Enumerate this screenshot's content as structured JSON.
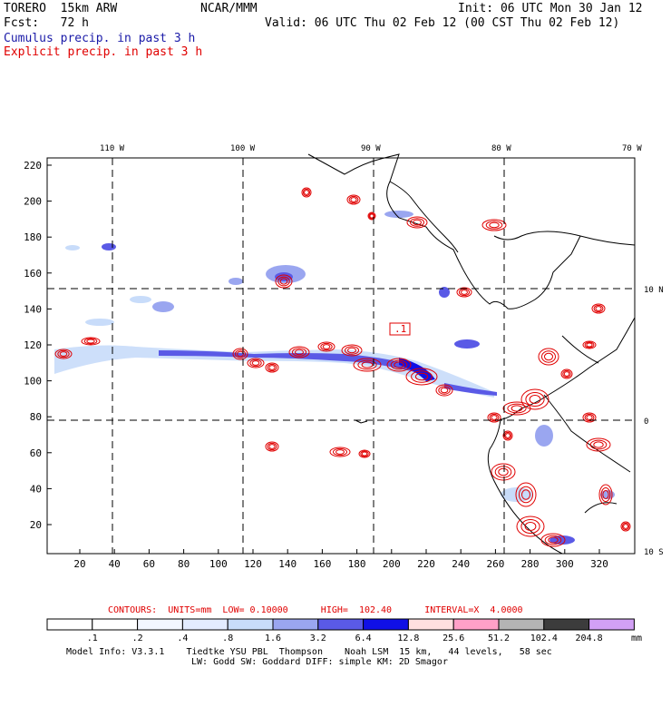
{
  "header": {
    "model": "TORERO  15km ARW",
    "org": "NCAR/MMM",
    "init": "Init: 06 UTC Mon 30 Jan 12",
    "fcst": "Fcst:   72 h",
    "valid": "Valid: 06 UTC Thu 02 Feb 12 (00 CST Thu 02 Feb 12)",
    "field1": "Cumulus precip. in past 3 h",
    "field2": "Explicit precip. in past 3 h",
    "field1_color": "#1a1aa8",
    "field2_color": "#e00000"
  },
  "map": {
    "lon_labels": [
      "110 W",
      "100 W",
      "90 W",
      "80 W",
      "70 W"
    ],
    "lat_labels": [
      "10 N",
      "0",
      "10 S"
    ],
    "y_ticks": [
      "220",
      "200",
      "180",
      "160",
      "140",
      "120",
      "100",
      "80",
      "60",
      "40",
      "20"
    ],
    "x_ticks": [
      "20",
      "40",
      "60",
      "80",
      "100",
      "120",
      "140",
      "160",
      "180",
      "200",
      "220",
      "240",
      "260",
      "280",
      "300",
      "320"
    ],
    "high_label": ".1"
  },
  "contour_info": {
    "text": "CONTOURS:  UNITS=mm  LOW= 0.10000      HIGH=  102.40      INTERVAL=X  4.0000",
    "color": "#e00000"
  },
  "colorbar": {
    "labels": [
      ".1",
      ".2",
      ".4",
      ".8",
      "1.6",
      "3.2",
      "6.4",
      "12.8",
      "25.6",
      "51.2",
      "102.4",
      "204.8"
    ],
    "units": "mm",
    "colors": [
      "#ffffff",
      "#ffffff",
      "#f2f6ff",
      "#e3ecff",
      "#c8dcfa",
      "#9aa6f0",
      "#5a5ae6",
      "#1010e6",
      "#ffe0e0",
      "#ffa0c8",
      "#b4b4b4",
      "#3c3c3c",
      "#d2a0f5"
    ]
  },
  "footer": {
    "line1": "Model Info: V3.3.1    Tiedtke YSU PBL  Thompson    Noah LSM  15 km,   44 levels,   58 sec",
    "line2": "LW: Godd SW: Goddard DIFF: simple KM: 2D Smagor"
  }
}
